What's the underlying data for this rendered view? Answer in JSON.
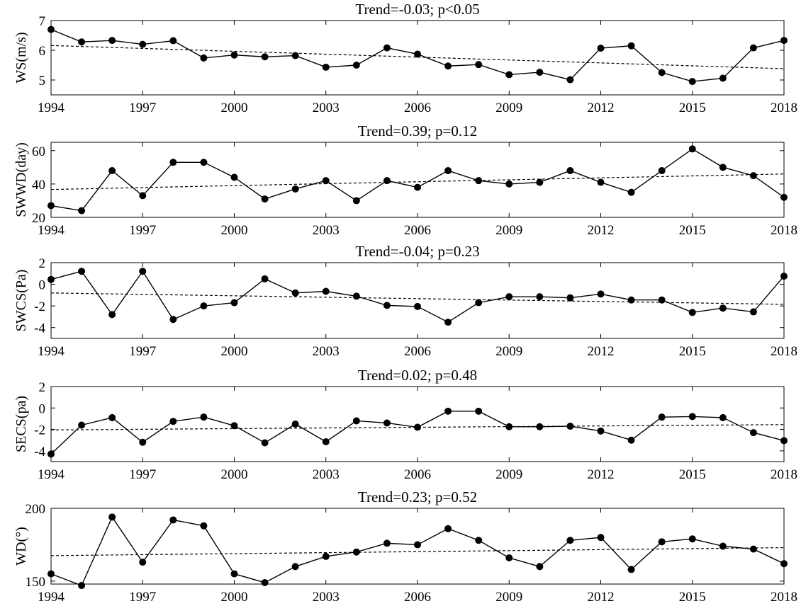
{
  "chart_data": [
    {
      "type": "line",
      "title": "Trend=-0.03; p<0.05",
      "ylabel": "WS(m/s)",
      "xlim": [
        1994,
        2018
      ],
      "ylim": [
        4.5,
        7
      ],
      "yticks": [
        5,
        6,
        7
      ],
      "xticks": [
        1994,
        1997,
        2000,
        2003,
        2006,
        2009,
        2012,
        2015,
        2018
      ],
      "grid": false,
      "x": [
        1994,
        1995,
        1996,
        1997,
        1998,
        1999,
        2000,
        2001,
        2002,
        2003,
        2004,
        2005,
        2006,
        2007,
        2008,
        2009,
        2010,
        2011,
        2012,
        2013,
        2014,
        2015,
        2016,
        2017,
        2018
      ],
      "values": [
        6.7,
        6.28,
        6.33,
        6.2,
        6.32,
        5.74,
        5.84,
        5.78,
        5.82,
        5.43,
        5.5,
        6.08,
        5.87,
        5.47,
        5.52,
        5.18,
        5.26,
        5.01,
        6.07,
        6.15,
        5.25,
        4.95,
        5.06,
        6.08,
        6.33
      ],
      "trend": {
        "start": [
          1994,
          6.16
        ],
        "end": [
          2018,
          5.38
        ]
      }
    },
    {
      "type": "line",
      "title": "Trend=0.39; p=0.12",
      "ylabel": "SWWD(day)",
      "xlim": [
        1994,
        2018
      ],
      "ylim": [
        20,
        65
      ],
      "yticks": [
        20,
        40,
        60
      ],
      "xticks": [
        1994,
        1997,
        2000,
        2003,
        2006,
        2009,
        2012,
        2015,
        2018
      ],
      "grid": false,
      "x": [
        1994,
        1995,
        1996,
        1997,
        1998,
        1999,
        2000,
        2001,
        2002,
        2003,
        2004,
        2005,
        2006,
        2007,
        2008,
        2009,
        2010,
        2011,
        2012,
        2013,
        2014,
        2015,
        2016,
        2017,
        2018
      ],
      "values": [
        27,
        24,
        48,
        33,
        53,
        53,
        44,
        31,
        37,
        42,
        30,
        42,
        38,
        48,
        42,
        40,
        41,
        48,
        41,
        35,
        48,
        61,
        50,
        45,
        32
      ],
      "trend": {
        "start": [
          1994,
          36.7
        ],
        "end": [
          2018,
          46.0
        ]
      }
    },
    {
      "type": "line",
      "title": "Trend=-0.04; p=0.23",
      "ylabel": "SWCS(Pa)",
      "xlim": [
        1994,
        2018
      ],
      "ylim": [
        -5,
        2
      ],
      "yticks": [
        -4,
        -2,
        0,
        2
      ],
      "xticks": [
        1994,
        1997,
        2000,
        2003,
        2006,
        2009,
        2012,
        2015,
        2018
      ],
      "grid": false,
      "x": [
        1994,
        1995,
        1996,
        1997,
        1998,
        1999,
        2000,
        2001,
        2002,
        2003,
        2004,
        2005,
        2006,
        2007,
        2008,
        2009,
        2010,
        2011,
        2012,
        2013,
        2014,
        2015,
        2016,
        2017,
        2018
      ],
      "values": [
        0.45,
        1.2,
        -2.8,
        1.2,
        -3.25,
        -2.0,
        -1.7,
        0.5,
        -0.8,
        -0.65,
        -1.1,
        -1.95,
        -2.05,
        -3.5,
        -1.7,
        -1.15,
        -1.15,
        -1.25,
        -0.9,
        -1.45,
        -1.45,
        -2.6,
        -2.2,
        -2.55,
        0.75
      ],
      "trend": {
        "start": [
          1994,
          -0.8
        ],
        "end": [
          2018,
          -1.85
        ]
      }
    },
    {
      "type": "line",
      "title": "Trend=0.02; p=0.48",
      "ylabel": "SECS(pa)",
      "xlim": [
        1994,
        2018
      ],
      "ylim": [
        -5,
        2
      ],
      "yticks": [
        -4,
        -2,
        0,
        2
      ],
      "xticks": [
        1994,
        1997,
        2000,
        2003,
        2006,
        2009,
        2012,
        2015,
        2018
      ],
      "grid": false,
      "x": [
        1994,
        1995,
        1996,
        1997,
        1998,
        1999,
        2000,
        2001,
        2002,
        2003,
        2004,
        2005,
        2006,
        2007,
        2008,
        2009,
        2010,
        2011,
        2012,
        2013,
        2014,
        2015,
        2016,
        2017,
        2018
      ],
      "values": [
        -4.3,
        -1.6,
        -0.9,
        -3.2,
        -1.25,
        -0.85,
        -1.65,
        -3.25,
        -1.5,
        -3.15,
        -1.2,
        -1.4,
        -1.8,
        -0.3,
        -0.3,
        -1.75,
        -1.75,
        -1.7,
        -2.15,
        -3.0,
        -0.85,
        -0.8,
        -0.9,
        -2.3,
        -3.05
      ],
      "trend": {
        "start": [
          1994,
          -2.05
        ],
        "end": [
          2018,
          -1.55
        ]
      }
    },
    {
      "type": "line",
      "title": "Trend=0.23; p=0.52",
      "ylabel": "WD(°)",
      "xlim": [
        1994,
        2018
      ],
      "ylim": [
        148,
        200
      ],
      "yticks": [
        150,
        200
      ],
      "xticks": [
        1994,
        1997,
        2000,
        2003,
        2006,
        2009,
        2012,
        2015,
        2018
      ],
      "grid": false,
      "x": [
        1994,
        1995,
        1996,
        1997,
        1998,
        1999,
        2000,
        2001,
        2002,
        2003,
        2004,
        2005,
        2006,
        2007,
        2008,
        2009,
        2010,
        2011,
        2012,
        2013,
        2014,
        2015,
        2016,
        2017,
        2018
      ],
      "values": [
        155,
        147,
        194,
        163,
        192,
        188,
        155,
        149,
        160,
        167,
        170,
        176,
        175,
        186,
        178,
        166,
        160,
        178,
        180,
        158,
        177,
        179,
        174,
        172,
        162
      ],
      "trend": {
        "start": [
          1994,
          167.5
        ],
        "end": [
          2018,
          173
        ]
      }
    }
  ]
}
